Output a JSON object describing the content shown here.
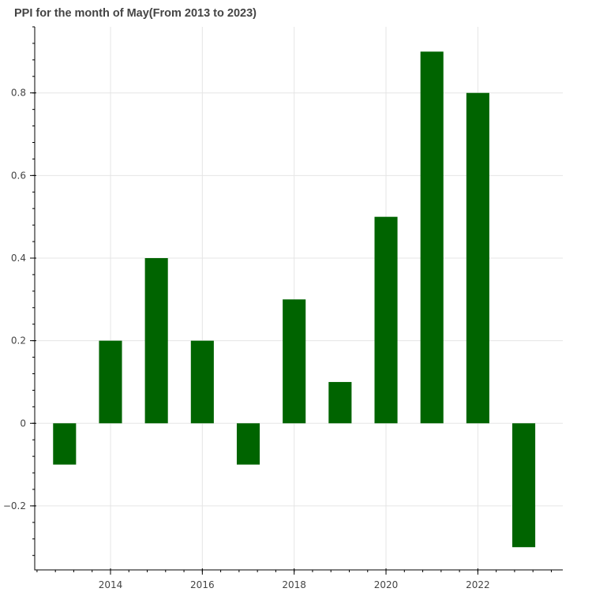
{
  "chart_data": {
    "type": "bar",
    "title": "PPI for the month of May(From 2013 to 2023)",
    "xlabel": "",
    "ylabel": "",
    "x": [
      2013,
      2014,
      2015,
      2016,
      2017,
      2018,
      2019,
      2020,
      2021,
      2022,
      2023
    ],
    "values": [
      -0.1,
      0.2,
      0.4,
      0.2,
      -0.1,
      0.3,
      0.1,
      0.5,
      0.9,
      0.8,
      -0.3
    ],
    "bar_width": 0.5,
    "xlim": [
      2012.35,
      2023.85
    ],
    "ylim": [
      -0.355,
      0.96
    ],
    "x_ticks": [
      2014,
      2016,
      2018,
      2020,
      2022
    ],
    "y_ticks": [
      -0.2,
      0,
      0.2,
      0.4,
      0.6,
      0.8
    ],
    "y_tick_labels": [
      "−0.2",
      "0",
      "0.2",
      "0.4",
      "0.6",
      "0.8"
    ],
    "bar_color": "#006400",
    "grid": true,
    "legend": "none"
  }
}
